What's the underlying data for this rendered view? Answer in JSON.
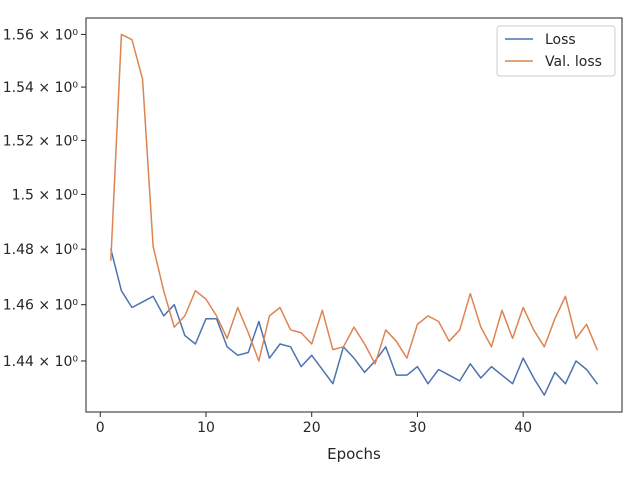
{
  "chart_data": {
    "type": "line",
    "title": "",
    "xlabel": "Epochs",
    "ylabel": "",
    "xlim": [
      -1.35,
      49.35
    ],
    "ylim": [
      1.4221,
      1.5663
    ],
    "yscale": "log",
    "grid": false,
    "legend_placement": "top-right",
    "x_ticks": [
      0,
      10,
      20,
      30,
      40
    ],
    "x_tick_labels": [
      "0",
      "10",
      "20",
      "30",
      "40"
    ],
    "y_ticks": [
      1.44,
      1.46,
      1.48,
      1.5,
      1.52,
      1.54,
      1.56
    ],
    "y_tick_labels": [
      "1.44 × 10⁰",
      "1.46 × 10⁰",
      "1.48 × 10⁰",
      "1.5 × 10⁰",
      "1.52 × 10⁰",
      "1.54 × 10⁰",
      "1.56 × 10⁰"
    ],
    "x": [
      1,
      2,
      3,
      4,
      5,
      6,
      7,
      8,
      9,
      10,
      11,
      12,
      13,
      14,
      15,
      16,
      17,
      18,
      19,
      20,
      21,
      22,
      23,
      24,
      25,
      26,
      27,
      28,
      29,
      30,
      31,
      32,
      33,
      34,
      35,
      36,
      37,
      38,
      39,
      40,
      41,
      42,
      43,
      44,
      45,
      46,
      47
    ],
    "series": [
      {
        "name": "Loss",
        "color": "#4c72b0",
        "values": [
          1.48,
          1.465,
          1.459,
          1.461,
          1.463,
          1.456,
          1.46,
          1.449,
          1.446,
          1.455,
          1.455,
          1.445,
          1.442,
          1.443,
          1.454,
          1.441,
          1.446,
          1.445,
          1.438,
          1.442,
          1.437,
          1.432,
          1.445,
          1.441,
          1.436,
          1.44,
          1.445,
          1.435,
          1.435,
          1.438,
          1.432,
          1.437,
          1.435,
          1.433,
          1.439,
          1.434,
          1.438,
          1.435,
          1.432,
          1.441,
          1.434,
          1.428,
          1.436,
          1.432,
          1.44,
          1.437,
          1.432
        ]
      },
      {
        "name": "Val. loss",
        "color": "#dd8452",
        "values": [
          1.476,
          1.56,
          1.558,
          1.543,
          1.481,
          1.465,
          1.452,
          1.456,
          1.465,
          1.462,
          1.456,
          1.448,
          1.459,
          1.45,
          1.44,
          1.456,
          1.459,
          1.451,
          1.45,
          1.446,
          1.458,
          1.444,
          1.445,
          1.452,
          1.446,
          1.439,
          1.451,
          1.447,
          1.441,
          1.453,
          1.456,
          1.454,
          1.447,
          1.451,
          1.464,
          1.452,
          1.445,
          1.458,
          1.448,
          1.459,
          1.451,
          1.445,
          1.455,
          1.463,
          1.448,
          1.453,
          1.444
        ]
      }
    ]
  }
}
